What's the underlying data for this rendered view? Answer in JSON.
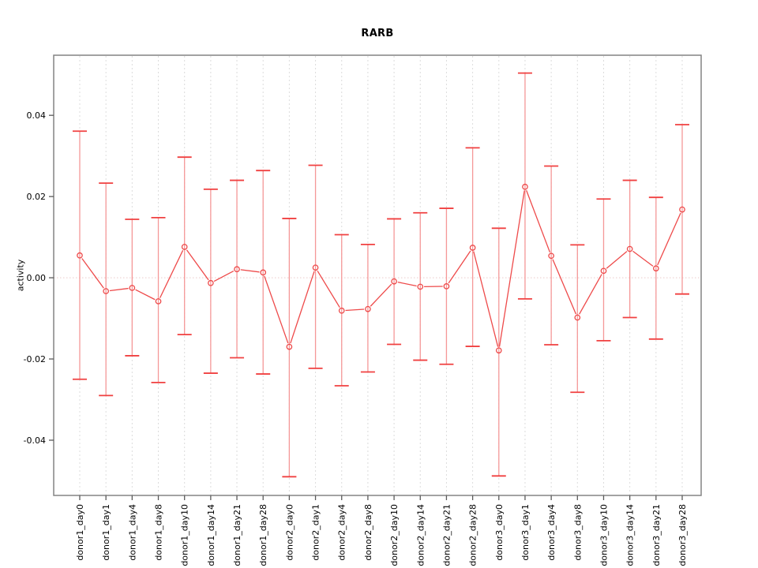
{
  "window": {
    "background": "#ffffff"
  },
  "chart_data": {
    "type": "scatter",
    "subtype": "points-with-error-bars",
    "title": "RARB",
    "xlabel": "",
    "ylabel": "activity",
    "legend_position": "none",
    "grid": "vertical-dashed",
    "zero_line": true,
    "ylim": [
      -0.0536,
      0.0548
    ],
    "yticks": [
      {
        "value": 0.04,
        "label": "0.04"
      },
      {
        "value": 0.02,
        "label": "0.02"
      },
      {
        "value": 0.0,
        "label": "0.00"
      },
      {
        "value": -0.02,
        "label": "-0.02"
      },
      {
        "value": -0.04,
        "label": "-0.04"
      }
    ],
    "categories": [
      "donor1_day0",
      "donor1_day1",
      "donor1_day4",
      "donor1_day8",
      "donor1_day10",
      "donor1_day14",
      "donor1_day21",
      "donor1_day28",
      "donor2_day0",
      "donor2_day1",
      "donor2_day4",
      "donor2_day8",
      "donor2_day10",
      "donor2_day14",
      "donor2_day21",
      "donor2_day28",
      "donor3_day0",
      "donor3_day1",
      "donor3_day4",
      "donor3_day8",
      "donor3_day10",
      "donor3_day14",
      "donor3_day21",
      "donor3_day28"
    ],
    "series": [
      {
        "name": "activity",
        "values": [
          0.0055,
          -0.0033,
          -0.0025,
          -0.0058,
          0.0076,
          -0.0013,
          0.0021,
          0.0013,
          -0.017,
          0.0025,
          -0.0081,
          -0.0077,
          -0.0009,
          -0.0022,
          -0.0021,
          0.0074,
          -0.0179,
          0.0224,
          0.0054,
          -0.0098,
          0.0017,
          0.0071,
          0.0023,
          0.0168
        ],
        "error_low": [
          -0.025,
          -0.029,
          -0.0192,
          -0.0258,
          -0.014,
          -0.0235,
          -0.0197,
          -0.0237,
          -0.049,
          -0.0223,
          -0.0266,
          -0.0232,
          -0.0164,
          -0.0203,
          -0.0213,
          -0.0169,
          -0.0488,
          -0.0052,
          -0.0165,
          -0.0282,
          -0.0155,
          -0.0098,
          -0.0151,
          -0.004
        ],
        "error_high": [
          0.0361,
          0.0233,
          0.0144,
          0.0148,
          0.0297,
          0.0218,
          0.024,
          0.0264,
          0.0146,
          0.0277,
          0.0106,
          0.0082,
          0.0145,
          0.016,
          0.0171,
          0.032,
          0.0122,
          0.0504,
          0.0275,
          0.0081,
          0.0194,
          0.024,
          0.0198,
          0.0377
        ]
      }
    ],
    "colors": {
      "point": "#ee4a4a",
      "line": "#ee4a4a",
      "error_bar": "#f59898",
      "error_cap": "#f04040",
      "zero_line": "#eac9c9",
      "grid": "#dcdcdc",
      "axis": "#848484",
      "tick": "#5a5a5a",
      "text": "#000000"
    }
  }
}
